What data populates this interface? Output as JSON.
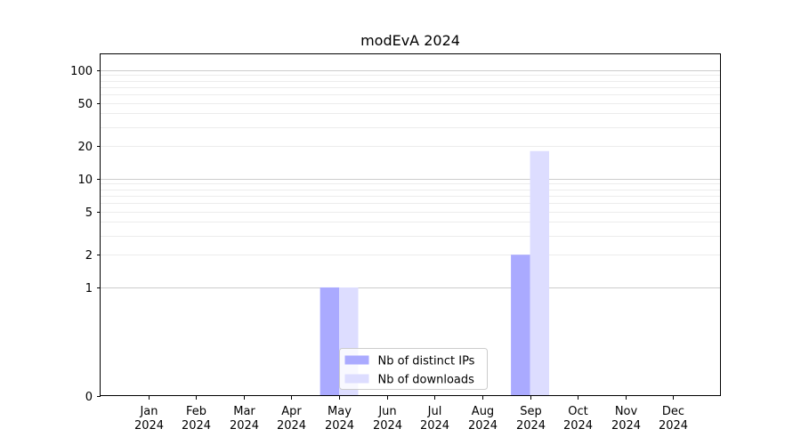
{
  "chart_data": {
    "type": "bar",
    "title": "modEvA 2024",
    "xlabel": "",
    "ylabel": "",
    "y_scale": "symlog",
    "ylim": [
      0,
      140
    ],
    "y_ticks": [
      0,
      1,
      2,
      5,
      10,
      20,
      50,
      100
    ],
    "categories": [
      [
        "Jan",
        "2024"
      ],
      [
        "Feb",
        "2024"
      ],
      [
        "Mar",
        "2024"
      ],
      [
        "Apr",
        "2024"
      ],
      [
        "May",
        "2024"
      ],
      [
        "Jun",
        "2024"
      ],
      [
        "Jul",
        "2024"
      ],
      [
        "Aug",
        "2024"
      ],
      [
        "Sep",
        "2024"
      ],
      [
        "Oct",
        "2024"
      ],
      [
        "Nov",
        "2024"
      ],
      [
        "Dec",
        "2024"
      ]
    ],
    "series": [
      {
        "name": "Nb of distinct IPs",
        "color": "#aaaaff",
        "values": [
          0,
          0,
          0,
          0,
          1,
          0,
          0,
          0,
          2,
          0,
          0,
          0
        ]
      },
      {
        "name": "Nb of downloads",
        "color": "#ddddff",
        "values": [
          0,
          0,
          0,
          0,
          1,
          0,
          0,
          0,
          18,
          0,
          0,
          0
        ]
      }
    ],
    "grid": true,
    "legend_position": "lower center"
  }
}
